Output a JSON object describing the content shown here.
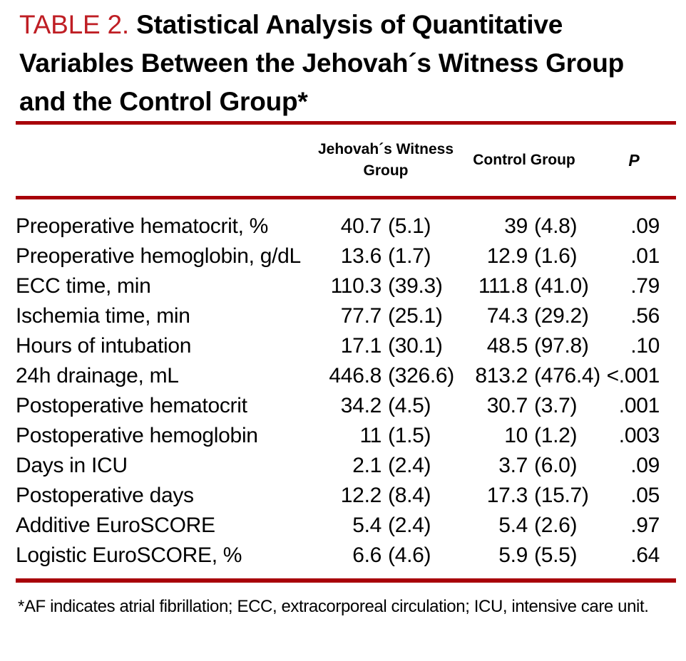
{
  "title": {
    "label": "TABLE 2.",
    "text": "Statistical Analysis of Quantitative Variables Between the Jehovah´s Witness Group and the Control Group*"
  },
  "colors": {
    "title_red": "#BF1E24",
    "rule_red": "#A80009",
    "text_black": "#000000",
    "background": "#FFFFFF"
  },
  "table": {
    "columns": [
      {
        "label": "Jehovah´s Witness Group"
      },
      {
        "label": "Control Group"
      },
      {
        "label": "P"
      }
    ],
    "rows": [
      {
        "label": "Preoperative hematocrit, %",
        "jw_mean": "40.7",
        "jw_sd": "(5.1)",
        "ctrl_mean": "39",
        "ctrl_sd": "(4.8)",
        "p": ".09"
      },
      {
        "label": "Preoperative hemoglobin, g/dL",
        "jw_mean": "13.6",
        "jw_sd": "(1.7)",
        "ctrl_mean": "12.9",
        "ctrl_sd": "(1.6)",
        "p": ".01"
      },
      {
        "label": "ECC time, min",
        "jw_mean": "110.3",
        "jw_sd": "(39.3)",
        "ctrl_mean": "111.8",
        "ctrl_sd": "(41.0)",
        "p": ".79"
      },
      {
        "label": "Ischemia time, min",
        "jw_mean": "77.7",
        "jw_sd": "(25.1)",
        "ctrl_mean": "74.3",
        "ctrl_sd": "(29.2)",
        "p": ".56"
      },
      {
        "label": "Hours of intubation",
        "jw_mean": "17.1",
        "jw_sd": "(30.1)",
        "ctrl_mean": "48.5",
        "ctrl_sd": "(97.8)",
        "p": ".10"
      },
      {
        "label": "24h drainage, mL",
        "jw_mean": "446.8",
        "jw_sd": "(326.6)",
        "ctrl_mean": "813.2",
        "ctrl_sd": "(476.4)",
        "p": "<.001"
      },
      {
        "label": "Postoperative hematocrit",
        "jw_mean": "34.2",
        "jw_sd": "(4.5)",
        "ctrl_mean": "30.7",
        "ctrl_sd": "(3.7)",
        "p": ".001"
      },
      {
        "label": "Postoperative hemoglobin",
        "jw_mean": "11",
        "jw_sd": "(1.5)",
        "ctrl_mean": "10",
        "ctrl_sd": "(1.2)",
        "p": ".003"
      },
      {
        "label": "Days in ICU",
        "jw_mean": "2.1",
        "jw_sd": "(2.4)",
        "ctrl_mean": "3.7",
        "ctrl_sd": "(6.0)",
        "p": ".09"
      },
      {
        "label": "Postoperative days",
        "jw_mean": "12.2",
        "jw_sd": "(8.4)",
        "ctrl_mean": "17.3",
        "ctrl_sd": "(15.7)",
        "p": ".05"
      },
      {
        "label": "Additive EuroSCORE",
        "jw_mean": "5.4",
        "jw_sd": "(2.4)",
        "ctrl_mean": "5.4",
        "ctrl_sd": "(2.6)",
        "p": ".97"
      },
      {
        "label": "Logistic EuroSCORE, %",
        "jw_mean": "6.6",
        "jw_sd": "(4.6)",
        "ctrl_mean": "5.9",
        "ctrl_sd": "(5.5)",
        "p": ".64"
      }
    ]
  },
  "footnote": "*AF indicates atrial fibrillation; ECC, extracorporeal circulation; ICU, intensive care unit."
}
